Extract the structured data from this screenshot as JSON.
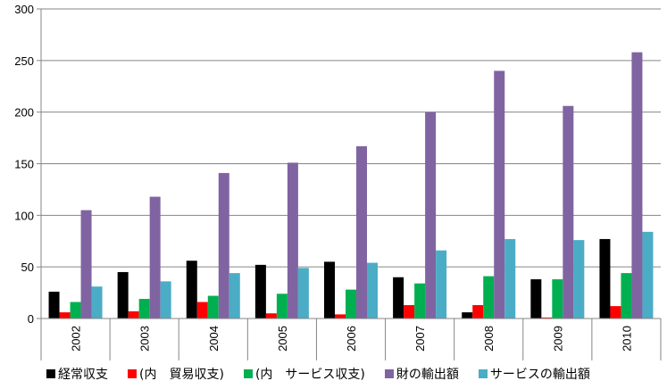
{
  "chart_data": {
    "type": "bar",
    "categories": [
      "2002",
      "2003",
      "2004",
      "2005",
      "2006",
      "2007",
      "2008",
      "2009",
      "2010"
    ],
    "series": [
      {
        "name": "経常収支",
        "color": "#000000",
        "values": [
          26,
          45,
          56,
          52,
          55,
          40,
          6,
          38,
          77
        ]
      },
      {
        "name": "(内　貿易収支)",
        "color": "#ff0000",
        "values": [
          6,
          7,
          16,
          5,
          4,
          13,
          13,
          1,
          12
        ]
      },
      {
        "name": "(内　サービス収支)",
        "color": "#00b050",
        "values": [
          16,
          19,
          22,
          24,
          28,
          34,
          41,
          38,
          44
        ]
      },
      {
        "name": "財の輸出額",
        "color": "#8064a2",
        "values": [
          105,
          118,
          141,
          151,
          167,
          200,
          240,
          206,
          258
        ]
      },
      {
        "name": "サービスの輸出額",
        "color": "#4bacc6",
        "values": [
          31,
          36,
          44,
          49,
          54,
          66,
          77,
          76,
          84
        ]
      }
    ],
    "ylim": [
      0,
      300
    ],
    "yticks": [
      0,
      50,
      100,
      150,
      200,
      250,
      300
    ],
    "grid": "horizontal",
    "legend_position": "bottom",
    "title": "",
    "xlabel": "",
    "ylabel": ""
  }
}
